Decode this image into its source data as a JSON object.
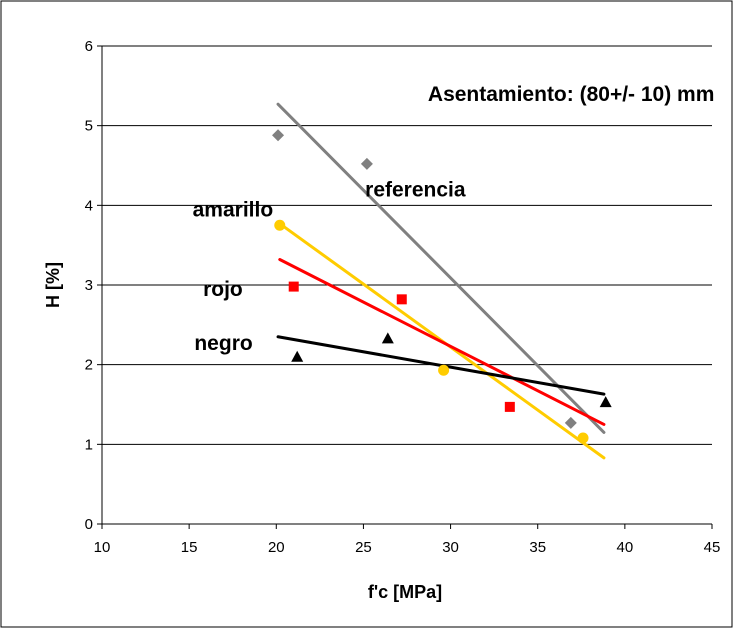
{
  "chart_data": {
    "type": "scatter",
    "title": "",
    "xlabel": "f'c [MPa]",
    "ylabel": "H [%]",
    "xlim": [
      10,
      45
    ],
    "ylim": [
      0,
      6
    ],
    "xticks": [
      10,
      15,
      20,
      25,
      30,
      35,
      40,
      45
    ],
    "yticks": [
      0,
      1,
      2,
      3,
      4,
      5,
      6
    ],
    "grid": "horizontal",
    "legend": "none",
    "annotations": [
      {
        "text": "Asentamiento: (80+/- 10) mm",
        "x": 28.7,
        "y": 5.4
      },
      {
        "text": "referencia",
        "x": 25.1,
        "y": 4.2
      },
      {
        "text": "amarillo",
        "x": 15.2,
        "y": 3.95
      },
      {
        "text": "rojo",
        "x": 15.8,
        "y": 2.95
      },
      {
        "text": "negro",
        "x": 15.3,
        "y": 2.27
      }
    ],
    "series": [
      {
        "marker": "diamond",
        "color": "#808080",
        "points": [
          [
            20.1,
            4.88
          ],
          [
            25.2,
            4.52
          ],
          [
            36.9,
            1.27
          ]
        ],
        "trend": [
          [
            20.1,
            5.27
          ],
          [
            38.8,
            1.15
          ]
        ]
      },
      {
        "marker": "circle",
        "color": "#FFCC00",
        "points": [
          [
            20.2,
            3.75
          ],
          [
            29.6,
            1.93
          ],
          [
            37.6,
            1.08
          ]
        ],
        "trend": [
          [
            20.2,
            3.77
          ],
          [
            38.8,
            0.83
          ]
        ]
      },
      {
        "marker": "square",
        "color": "#FF0000",
        "points": [
          [
            21.0,
            2.98
          ],
          [
            27.2,
            2.82
          ],
          [
            33.4,
            1.47
          ]
        ],
        "trend": [
          [
            20.2,
            3.32
          ],
          [
            38.8,
            1.25
          ]
        ]
      },
      {
        "marker": "triangle",
        "color": "#000000",
        "points": [
          [
            21.2,
            2.1
          ],
          [
            26.4,
            2.33
          ],
          [
            38.9,
            1.53
          ]
        ],
        "trend": [
          [
            20.1,
            2.35
          ],
          [
            38.8,
            1.63
          ]
        ]
      }
    ]
  }
}
